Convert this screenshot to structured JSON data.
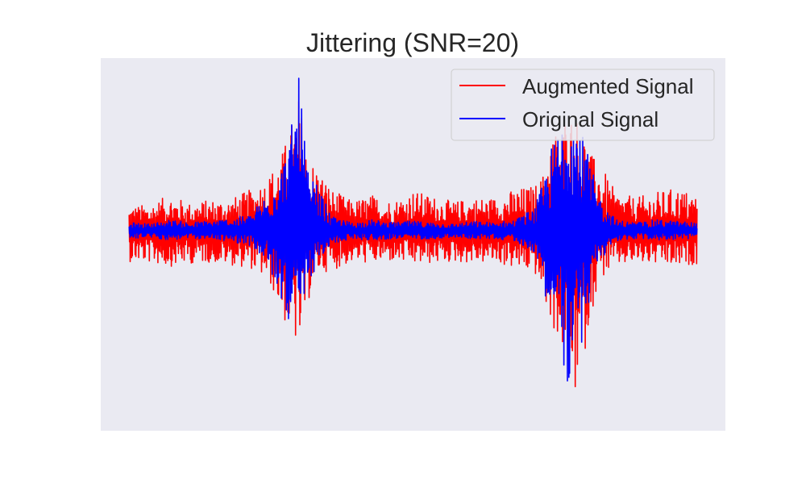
{
  "chart_data": {
    "type": "line",
    "title": "Jittering (SNR=20)",
    "xlabel": "",
    "ylabel": "",
    "xlim": [
      -70,
      1470
    ],
    "ylim": [
      -2.9,
      2.5
    ],
    "grid": false,
    "axes_visible": false,
    "legend_position": "top-right",
    "background_color": "#eaeaf2",
    "x": [
      0,
      50,
      100,
      150,
      200,
      250,
      300,
      340,
      360,
      380,
      400,
      420,
      440,
      460,
      500,
      550,
      600,
      650,
      700,
      750,
      800,
      850,
      900,
      950,
      1000,
      1020,
      1040,
      1060,
      1080,
      1100,
      1120,
      1140,
      1160,
      1200,
      1250,
      1300,
      1350,
      1400
    ],
    "series": [
      {
        "name": "Augmented Signal",
        "color": "#ff0000",
        "upper": [
          0.36,
          0.38,
          0.52,
          0.4,
          0.45,
          0.46,
          0.6,
          0.78,
          0.96,
          1.18,
          1.58,
          2.0,
          1.05,
          0.98,
          0.6,
          0.43,
          0.52,
          0.43,
          0.58,
          0.5,
          0.42,
          0.48,
          0.48,
          0.6,
          0.66,
          0.82,
          1.4,
          1.55,
          1.75,
          1.72,
          1.5,
          1.1,
          0.98,
          0.55,
          0.48,
          0.56,
          0.62,
          0.52
        ],
        "lower": [
          -0.45,
          -0.47,
          -0.52,
          -0.48,
          -0.46,
          -0.5,
          -0.55,
          -0.72,
          -0.94,
          -1.3,
          -1.55,
          -1.75,
          -1.08,
          -0.62,
          -0.58,
          -0.46,
          -0.48,
          -0.45,
          -0.5,
          -0.48,
          -0.46,
          -0.47,
          -0.47,
          -0.55,
          -0.62,
          -0.96,
          -1.38,
          -1.6,
          -2.02,
          -2.42,
          -1.9,
          -1.18,
          -0.72,
          -0.52,
          -0.48,
          -0.5,
          -0.55,
          -0.48
        ]
      },
      {
        "name": "Original Signal",
        "color": "#0000ff",
        "upper": [
          0.12,
          0.1,
          0.16,
          0.12,
          0.15,
          0.18,
          0.24,
          0.56,
          0.86,
          1.05,
          1.52,
          2.28,
          0.85,
          0.7,
          0.2,
          0.12,
          0.16,
          0.12,
          0.14,
          0.12,
          0.1,
          0.14,
          0.12,
          0.16,
          0.34,
          0.7,
          1.2,
          1.55,
          2.28,
          1.8,
          1.35,
          0.9,
          0.5,
          0.16,
          0.12,
          0.16,
          0.14,
          0.12
        ],
        "lower": [
          -0.12,
          -0.1,
          -0.14,
          -0.12,
          -0.12,
          -0.16,
          -0.22,
          -0.5,
          -0.84,
          -1.05,
          -1.46,
          -1.65,
          -0.82,
          -0.55,
          -0.2,
          -0.12,
          -0.14,
          -0.12,
          -0.12,
          -0.12,
          -0.1,
          -0.12,
          -0.12,
          -0.15,
          -0.32,
          -0.78,
          -1.3,
          -1.55,
          -2.3,
          -2.2,
          -1.52,
          -0.9,
          -0.45,
          -0.15,
          -0.12,
          -0.14,
          -0.13,
          -0.12
        ]
      }
    ]
  }
}
